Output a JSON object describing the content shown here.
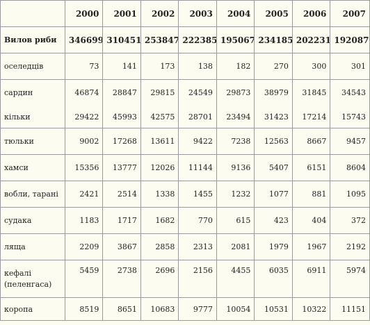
{
  "table": {
    "years": [
      "2000",
      "2001",
      "2002",
      "2003",
      "2004",
      "2005",
      "2006",
      "2007"
    ],
    "total": {
      "label": "Вилов риби",
      "values": [
        "346699",
        "310451",
        "253847",
        "222385",
        "195067",
        "234185",
        "202231",
        "192087"
      ]
    },
    "rows": [
      {
        "label": "оселедців",
        "values": [
          "73",
          "141",
          "173",
          "138",
          "182",
          "270",
          "300",
          "301"
        ]
      },
      {
        "label": "сардин",
        "values": [
          "46874",
          "28847",
          "29815",
          "24549",
          "29873",
          "38979",
          "31845",
          "34543"
        ]
      },
      {
        "label": "кільки",
        "values": [
          "29422",
          "45993",
          "42575",
          "28701",
          "23494",
          "31423",
          "17214",
          "15743"
        ]
      },
      {
        "label": "тюльки",
        "values": [
          "9002",
          "17268",
          "13611",
          "9422",
          "7238",
          "12563",
          "8667",
          "9457"
        ]
      },
      {
        "label": "хамси",
        "values": [
          "15356",
          "13777",
          "12026",
          "11144",
          "9136",
          "5407",
          "6151",
          "8604"
        ]
      },
      {
        "label": "вобли, тарані",
        "values": [
          "2421",
          "2514",
          "1338",
          "1455",
          "1232",
          "1077",
          "881",
          "1095"
        ]
      },
      {
        "label": "судака",
        "values": [
          "1183",
          "1717",
          "1682",
          "770",
          "615",
          "423",
          "404",
          "372"
        ]
      },
      {
        "label": "ляща",
        "values": [
          "2209",
          "3867",
          "2858",
          "2313",
          "2081",
          "1979",
          "1967",
          "2192"
        ]
      },
      {
        "label": "кефалі (пеленгаса)",
        "values": [
          "5459",
          "2738",
          "2696",
          "2156",
          "4455",
          "6035",
          "6911",
          "5974"
        ]
      },
      {
        "label": "коропа",
        "values": [
          "8519",
          "8651",
          "10683",
          "9777",
          "10054",
          "10531",
          "10322",
          "11151"
        ]
      }
    ]
  }
}
